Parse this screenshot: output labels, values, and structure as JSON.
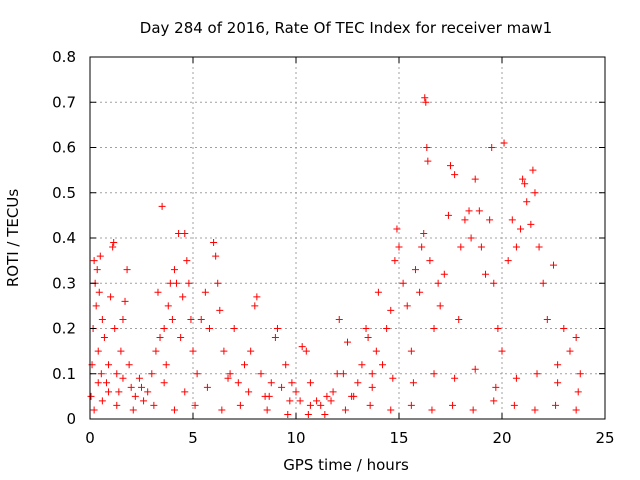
{
  "chart_data": {
    "type": "scatter",
    "title": "Day 284 of 2016, Rate Of TEC Index for receiver maw1",
    "xlabel": "GPS time / hours",
    "ylabel": "ROTI / TECUs",
    "xlim": [
      0,
      25
    ],
    "ylim": [
      0,
      0.8
    ],
    "xticks": [
      0,
      5,
      10,
      15,
      20,
      25
    ],
    "xtick_labels": [
      "0",
      "5",
      "10",
      "15",
      "20",
      "25"
    ],
    "yticks": [
      0,
      0.1,
      0.2,
      0.3,
      0.4,
      0.5,
      0.6,
      0.7,
      0.8
    ],
    "ytick_labels": [
      "0",
      "0.1",
      "0.2",
      "0.3",
      "0.4",
      "0.5",
      "0.6",
      "0.7",
      "0.8"
    ],
    "grid": true,
    "marker": "plus",
    "series": [
      {
        "name": "ROTI",
        "color": "#ff0000",
        "points": [
          [
            0.05,
            0.05
          ],
          [
            0.1,
            0.12
          ],
          [
            0.15,
            0.2
          ],
          [
            0.2,
            0.35
          ],
          [
            0.25,
            0.3
          ],
          [
            0.3,
            0.25
          ],
          [
            0.35,
            0.33
          ],
          [
            0.4,
            0.15
          ],
          [
            0.45,
            0.28
          ],
          [
            0.5,
            0.36
          ],
          [
            0.55,
            0.1
          ],
          [
            0.6,
            0.22
          ],
          [
            0.7,
            0.18
          ],
          [
            0.8,
            0.08
          ],
          [
            0.9,
            0.12
          ],
          [
            1.0,
            0.27
          ],
          [
            1.1,
            0.38
          ],
          [
            1.15,
            0.39
          ],
          [
            1.2,
            0.2
          ],
          [
            1.3,
            0.1
          ],
          [
            1.4,
            0.06
          ],
          [
            1.5,
            0.15
          ],
          [
            1.6,
            0.22
          ],
          [
            1.7,
            0.26
          ],
          [
            1.8,
            0.33
          ],
          [
            1.9,
            0.12
          ],
          [
            2.0,
            0.07
          ],
          [
            2.2,
            0.05
          ],
          [
            2.4,
            0.09
          ],
          [
            2.6,
            0.04
          ],
          [
            2.8,
            0.06
          ],
          [
            3.0,
            0.1
          ],
          [
            3.2,
            0.15
          ],
          [
            3.3,
            0.28
          ],
          [
            3.4,
            0.18
          ],
          [
            3.5,
            0.47
          ],
          [
            3.6,
            0.2
          ],
          [
            3.7,
            0.12
          ],
          [
            3.8,
            0.25
          ],
          [
            3.9,
            0.3
          ],
          [
            4.0,
            0.22
          ],
          [
            4.1,
            0.33
          ],
          [
            4.2,
            0.3
          ],
          [
            4.3,
            0.41
          ],
          [
            4.4,
            0.18
          ],
          [
            4.5,
            0.27
          ],
          [
            4.6,
            0.41
          ],
          [
            4.7,
            0.35
          ],
          [
            4.8,
            0.3
          ],
          [
            4.9,
            0.22
          ],
          [
            5.0,
            0.15
          ],
          [
            5.2,
            0.1
          ],
          [
            5.4,
            0.22
          ],
          [
            5.6,
            0.28
          ],
          [
            5.8,
            0.2
          ],
          [
            6.0,
            0.39
          ],
          [
            6.1,
            0.36
          ],
          [
            6.2,
            0.3
          ],
          [
            6.3,
            0.24
          ],
          [
            6.5,
            0.15
          ],
          [
            6.8,
            0.1
          ],
          [
            7.0,
            0.2
          ],
          [
            7.2,
            0.08
          ],
          [
            7.5,
            0.12
          ],
          [
            7.8,
            0.15
          ],
          [
            8.0,
            0.25
          ],
          [
            8.1,
            0.27
          ],
          [
            8.3,
            0.1
          ],
          [
            8.5,
            0.05
          ],
          [
            8.8,
            0.08
          ],
          [
            9.0,
            0.18
          ],
          [
            9.1,
            0.2
          ],
          [
            9.3,
            0.07
          ],
          [
            9.5,
            0.12
          ],
          [
            9.8,
            0.08
          ],
          [
            10.0,
            0.06
          ],
          [
            10.2,
            0.04
          ],
          [
            10.3,
            0.16
          ],
          [
            10.5,
            0.15
          ],
          [
            10.7,
            0.08
          ],
          [
            11.0,
            0.04
          ],
          [
            11.2,
            0.03
          ],
          [
            11.5,
            0.05
          ],
          [
            11.8,
            0.06
          ],
          [
            12.0,
            0.1
          ],
          [
            12.1,
            0.22
          ],
          [
            12.3,
            0.1
          ],
          [
            12.5,
            0.17
          ],
          [
            12.8,
            0.05
          ],
          [
            13.0,
            0.08
          ],
          [
            13.2,
            0.12
          ],
          [
            13.4,
            0.2
          ],
          [
            13.5,
            0.18
          ],
          [
            13.7,
            0.1
          ],
          [
            13.9,
            0.15
          ],
          [
            14.0,
            0.28
          ],
          [
            14.2,
            0.12
          ],
          [
            14.4,
            0.2
          ],
          [
            14.6,
            0.24
          ],
          [
            14.8,
            0.35
          ],
          [
            14.9,
            0.42
          ],
          [
            15.0,
            0.38
          ],
          [
            15.2,
            0.3
          ],
          [
            15.4,
            0.25
          ],
          [
            15.6,
            0.15
          ],
          [
            15.8,
            0.33
          ],
          [
            16.0,
            0.28
          ],
          [
            16.1,
            0.38
          ],
          [
            16.2,
            0.41
          ],
          [
            16.25,
            0.71
          ],
          [
            16.3,
            0.7
          ],
          [
            16.35,
            0.6
          ],
          [
            16.4,
            0.57
          ],
          [
            16.5,
            0.35
          ],
          [
            16.7,
            0.2
          ],
          [
            16.9,
            0.3
          ],
          [
            17.0,
            0.25
          ],
          [
            17.2,
            0.32
          ],
          [
            17.4,
            0.45
          ],
          [
            17.5,
            0.56
          ],
          [
            17.7,
            0.54
          ],
          [
            17.9,
            0.22
          ],
          [
            18.0,
            0.38
          ],
          [
            18.2,
            0.44
          ],
          [
            18.4,
            0.46
          ],
          [
            18.5,
            0.4
          ],
          [
            18.7,
            0.53
          ],
          [
            18.9,
            0.46
          ],
          [
            19.0,
            0.38
          ],
          [
            19.2,
            0.32
          ],
          [
            19.4,
            0.44
          ],
          [
            19.5,
            0.6
          ],
          [
            19.6,
            0.3
          ],
          [
            19.8,
            0.2
          ],
          [
            20.0,
            0.15
          ],
          [
            20.1,
            0.61
          ],
          [
            20.3,
            0.35
          ],
          [
            20.5,
            0.44
          ],
          [
            20.7,
            0.38
          ],
          [
            20.9,
            0.42
          ],
          [
            21.0,
            0.53
          ],
          [
            21.1,
            0.52
          ],
          [
            21.2,
            0.48
          ],
          [
            21.4,
            0.43
          ],
          [
            21.5,
            0.55
          ],
          [
            21.6,
            0.5
          ],
          [
            21.8,
            0.38
          ],
          [
            22.0,
            0.3
          ],
          [
            22.2,
            0.22
          ],
          [
            22.5,
            0.34
          ],
          [
            22.7,
            0.12
          ],
          [
            23.0,
            0.2
          ],
          [
            23.3,
            0.15
          ],
          [
            23.6,
            0.18
          ],
          [
            23.8,
            0.1
          ],
          [
            0.2,
            0.02
          ],
          [
            0.6,
            0.04
          ],
          [
            1.3,
            0.03
          ],
          [
            2.1,
            0.02
          ],
          [
            3.1,
            0.03
          ],
          [
            4.1,
            0.02
          ],
          [
            5.1,
            0.03
          ],
          [
            6.4,
            0.02
          ],
          [
            7.3,
            0.03
          ],
          [
            8.6,
            0.02
          ],
          [
            9.6,
            0.01
          ],
          [
            10.6,
            0.01
          ],
          [
            11.4,
            0.01
          ],
          [
            12.4,
            0.02
          ],
          [
            13.6,
            0.03
          ],
          [
            14.6,
            0.02
          ],
          [
            15.6,
            0.03
          ],
          [
            16.6,
            0.02
          ],
          [
            17.6,
            0.03
          ],
          [
            18.6,
            0.02
          ],
          [
            19.6,
            0.04
          ],
          [
            20.6,
            0.03
          ],
          [
            21.6,
            0.02
          ],
          [
            22.6,
            0.03
          ],
          [
            23.6,
            0.02
          ],
          [
            0.4,
            0.08
          ],
          [
            0.9,
            0.06
          ],
          [
            1.6,
            0.09
          ],
          [
            2.5,
            0.07
          ],
          [
            3.6,
            0.08
          ],
          [
            4.6,
            0.06
          ],
          [
            5.7,
            0.07
          ],
          [
            6.7,
            0.09
          ],
          [
            7.7,
            0.06
          ],
          [
            8.7,
            0.05
          ],
          [
            9.7,
            0.04
          ],
          [
            10.7,
            0.03
          ],
          [
            11.7,
            0.04
          ],
          [
            12.7,
            0.05
          ],
          [
            13.7,
            0.07
          ],
          [
            14.7,
            0.09
          ],
          [
            15.7,
            0.08
          ],
          [
            16.7,
            0.1
          ],
          [
            17.7,
            0.09
          ],
          [
            18.7,
            0.11
          ],
          [
            19.7,
            0.07
          ],
          [
            20.7,
            0.09
          ],
          [
            21.7,
            0.1
          ],
          [
            22.7,
            0.08
          ],
          [
            23.7,
            0.06
          ]
        ]
      }
    ]
  }
}
